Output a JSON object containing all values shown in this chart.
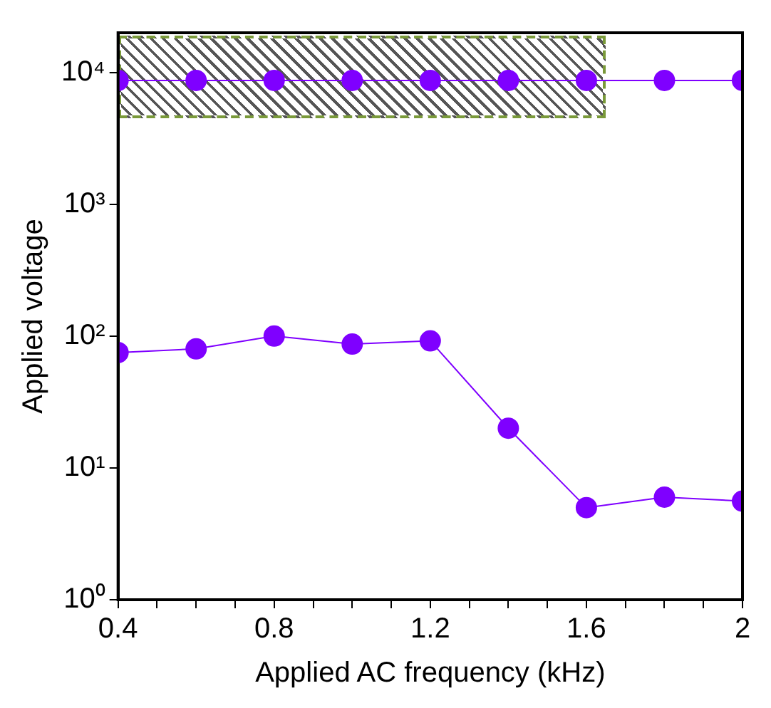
{
  "chart_data": {
    "type": "line",
    "xlabel": "Applied AC frequency (kHz)",
    "ylabel": "Applied voltage",
    "x": [
      0.4,
      0.6,
      0.8,
      1.0,
      1.2,
      1.4,
      1.6,
      1.8,
      2.0
    ],
    "series": [
      {
        "color": "#7f00ff",
        "values": [
          8700,
          8700,
          8700,
          8700,
          8700,
          8700,
          8700,
          8700,
          8700
        ]
      },
      {
        "color": "#7f00ff",
        "values": [
          75,
          80,
          100,
          87,
          92,
          20,
          5,
          6,
          5.6
        ]
      }
    ],
    "log": "y",
    "xlim": [
      0.4,
      2.0
    ],
    "ylim": [
      1,
      20000
    ],
    "xticks": [
      0.4,
      {
        "value": 0.5,
        "label": null
      },
      {
        "value": 0.6,
        "label": null
      },
      {
        "value": 0.7,
        "label": null
      },
      0.8,
      {
        "value": 0.9,
        "label": null
      },
      {
        "value": 1.0,
        "label": null
      },
      {
        "value": 1.1,
        "label": null
      },
      1.2,
      {
        "value": 1.3,
        "label": null
      },
      {
        "value": 1.4,
        "label": null
      },
      {
        "value": 1.5,
        "label": null
      },
      1.6,
      {
        "value": 1.7,
        "label": null
      },
      {
        "value": 1.8,
        "label": null
      },
      {
        "value": 1.9,
        "label": null
      },
      2
    ],
    "yticks": [
      {
        "value": 1,
        "label": "10⁰"
      },
      {
        "value": 10,
        "label": "10¹"
      },
      {
        "value": 100,
        "label": "10²"
      },
      {
        "value": 1000,
        "label": "10³"
      },
      {
        "value": 10000,
        "label": "10⁴"
      }
    ],
    "grid": false,
    "legend": false,
    "marker": "circle",
    "line_style": "solid"
  }
}
